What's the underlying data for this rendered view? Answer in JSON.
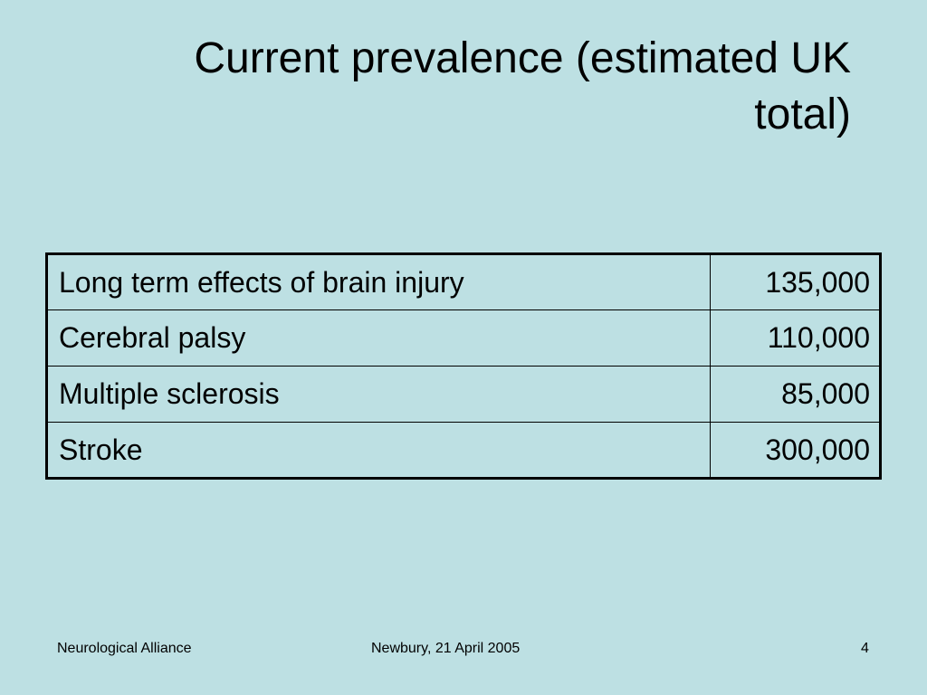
{
  "slide": {
    "title_line1": "Current prevalence (estimated UK",
    "title_line2": "total)"
  },
  "table": {
    "rows": [
      {
        "condition": "Long term effects of brain injury",
        "value": "135,000"
      },
      {
        "condition": "Cerebral palsy",
        "value": "110,000"
      },
      {
        "condition": "Multiple sclerosis",
        "value": "85,000"
      },
      {
        "condition": "Stroke",
        "value": "300,000"
      }
    ]
  },
  "footer": {
    "left": "Neurological Alliance",
    "center": "Newbury, 21 April 2005",
    "page_number": "4"
  },
  "colors": {
    "background": "#bde0e3",
    "text": "#000000"
  }
}
